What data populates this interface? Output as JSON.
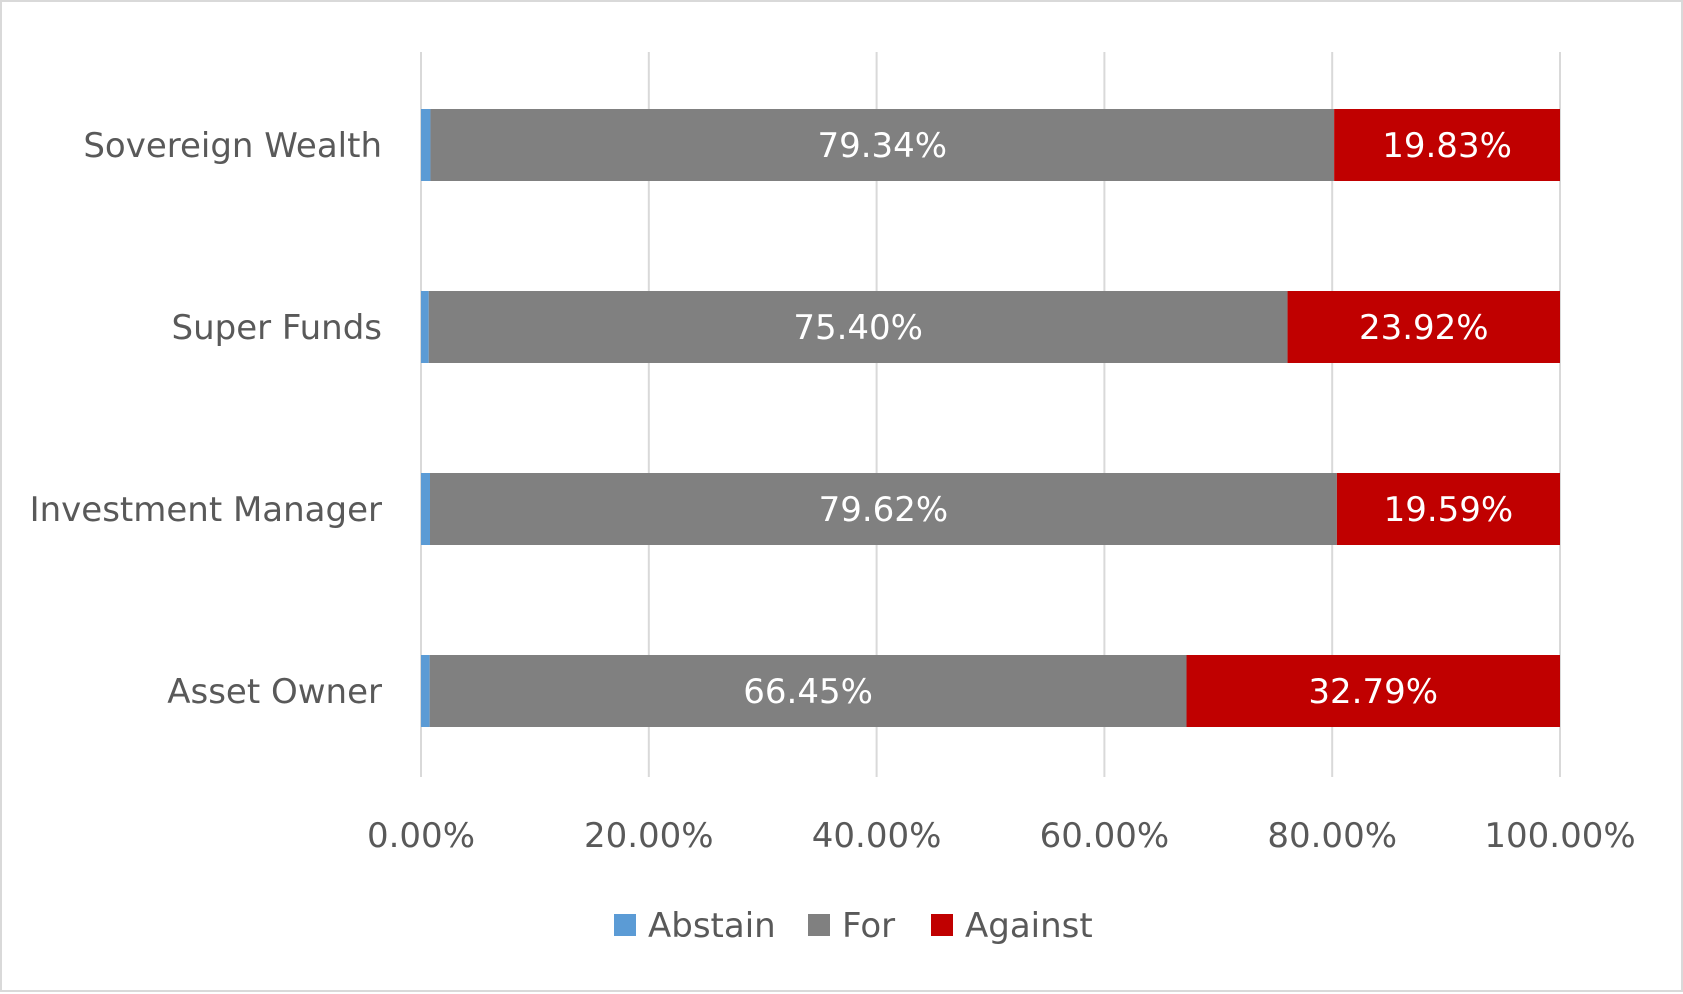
{
  "chart_data": {
    "type": "bar",
    "orientation": "horizontal",
    "stacked": true,
    "categories": [
      "Sovereign Wealth",
      "Super Funds",
      "Investment Manager",
      "Asset Owner"
    ],
    "series": [
      {
        "name": "Abstain",
        "color": "#5b9bd5",
        "values": [
          0.83,
          0.68,
          0.79,
          0.76
        ],
        "labels": [
          "",
          "",
          "",
          ""
        ]
      },
      {
        "name": "For",
        "color": "#808080",
        "values": [
          79.34,
          75.4,
          79.62,
          66.45
        ],
        "labels": [
          "79.34%",
          "75.40%",
          "79.62%",
          "66.45%"
        ]
      },
      {
        "name": "Against",
        "color": "#c00000",
        "values": [
          19.83,
          23.92,
          19.59,
          32.79
        ],
        "labels": [
          "19.83%",
          "23.92%",
          "19.59%",
          "32.79%"
        ]
      }
    ],
    "xlim": [
      0,
      100
    ],
    "xticks": [
      0,
      20,
      40,
      60,
      80,
      100
    ],
    "xtick_labels": [
      "0.00%",
      "20.00%",
      "40.00%",
      "60.00%",
      "80.00%",
      "100.00%"
    ],
    "grid": "vertical",
    "grid_color": "#d9d9d9",
    "legend": {
      "position": "bottom",
      "items": [
        "Abstain",
        "For",
        "Against"
      ]
    }
  }
}
